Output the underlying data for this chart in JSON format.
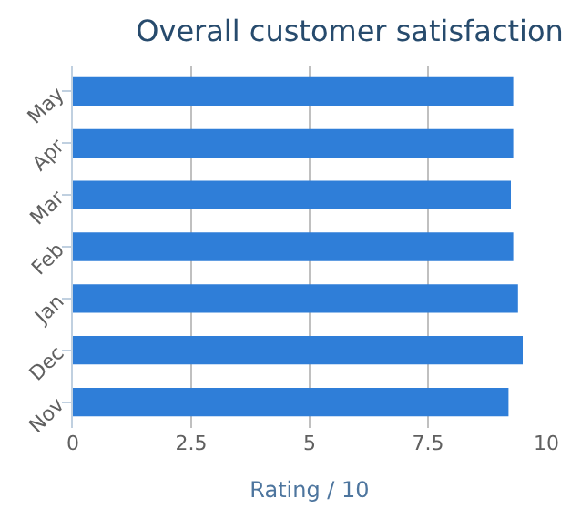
{
  "chart_data": {
    "type": "bar",
    "orientation": "horizontal",
    "title": "Overall customer satisfaction",
    "xlabel": "Rating / 10",
    "categories": [
      "May",
      "Apr",
      "Mar",
      "Feb",
      "Jan",
      "Dec",
      "Nov"
    ],
    "values": [
      9.3,
      9.3,
      9.25,
      9.3,
      9.4,
      9.5,
      9.2
    ],
    "color": "#2f7ed8",
    "xlim": [
      0,
      10
    ],
    "xticks": [
      0,
      2.5,
      5,
      7.5,
      10
    ],
    "grid": "x"
  }
}
